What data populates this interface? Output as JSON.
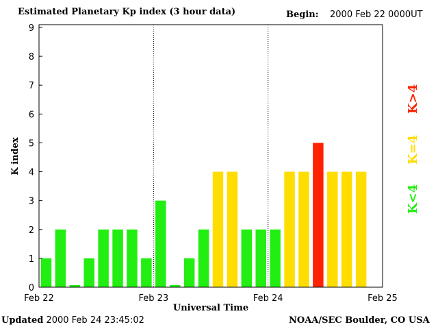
{
  "header": {
    "title": "Estimated Planetary Kp index (3 hour data)",
    "begin_label": "Begin:",
    "begin_value": "2000 Feb 22 0000UT"
  },
  "footer": {
    "updated_label": "Updated",
    "updated_value": "2000 Feb 24 23:45:02",
    "source": "NOAA/SEC Boulder, CO USA"
  },
  "legend": {
    "low": {
      "label": "K<4",
      "color": "#22ee11"
    },
    "mid": {
      "label": "K=4",
      "color": "#ffdd00"
    },
    "high": {
      "label": "K>4",
      "color": "#ff2200"
    }
  },
  "chart_data": {
    "type": "bar",
    "xlabel": "Universal Time",
    "ylabel": "K index",
    "ylim": [
      0,
      9
    ],
    "yticks": [
      0,
      1,
      2,
      3,
      4,
      5,
      6,
      7,
      8,
      9
    ],
    "xtick_labels": [
      "Feb 22",
      "Feb 23",
      "Feb 24",
      "Feb 25"
    ],
    "bar_interval_hours": 3,
    "values": [
      1,
      2,
      0,
      1,
      2,
      2,
      2,
      1,
      3,
      0,
      1,
      2,
      4,
      4,
      2,
      2,
      2,
      4,
      4,
      5,
      4,
      4,
      4
    ],
    "day_separators": "dotted",
    "grid": false,
    "colors": {
      "below_4": "#22ee11",
      "equal_4": "#ffdd00",
      "above_4": "#ff2200"
    }
  }
}
